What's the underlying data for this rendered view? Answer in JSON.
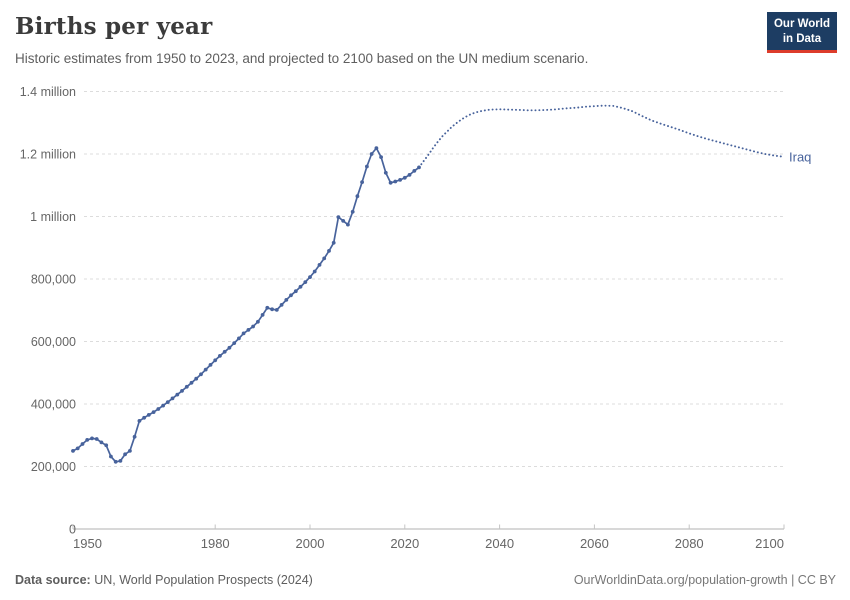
{
  "header": {
    "title": "Births per year",
    "subtitle": "Historic estimates from 1950 to 2023, and projected to 2100 based on the UN medium scenario."
  },
  "logo": {
    "line1": "Our World",
    "line2": "in Data"
  },
  "footer": {
    "source_label": "Data source:",
    "source_value": "UN, World Population Prospects (2024)",
    "attribution": "OurWorldinData.org/population-growth | CC BY"
  },
  "colors": {
    "line": "#48639c",
    "grid": "#dcdcdc",
    "axis": "#b0b0b0",
    "tick_mark": "#c4c4c4",
    "tick_label": "#666666",
    "title_text": "#3b3b3b",
    "subtitle_text": "#5f5f5f",
    "footer_text": "#5e5e5e",
    "attribution_text": "#777777",
    "logo_bg": "#1d3d63",
    "logo_accent": "#dd3c2b",
    "logo_text": "#ffffff"
  },
  "chart_data": {
    "type": "line",
    "title": "Births per year",
    "entity_label": "Iraq",
    "xlim": [
      1950,
      2100
    ],
    "ylim": [
      0,
      1400000
    ],
    "x_ticks": [
      1950,
      1980,
      2000,
      2020,
      2040,
      2060,
      2080,
      2100
    ],
    "y_ticks": [
      0,
      200000,
      400000,
      600000,
      800000,
      1000000,
      1200000,
      1400000
    ],
    "y_tick_labels": [
      "0",
      "200,000",
      "400,000",
      "600,000",
      "800,000",
      "1 million",
      "1.2 million",
      "1.4 million"
    ],
    "grid": true,
    "legend_position": "end-of-line",
    "series": [
      {
        "name": "historic (1950-2023)",
        "style": "solid-with-markers",
        "points": [
          [
            1950,
            250000
          ],
          [
            1951,
            258000
          ],
          [
            1952,
            272000
          ],
          [
            1953,
            285000
          ],
          [
            1954,
            290000
          ],
          [
            1955,
            288000
          ],
          [
            1956,
            277000
          ],
          [
            1957,
            268000
          ],
          [
            1958,
            232000
          ],
          [
            1959,
            215000
          ],
          [
            1960,
            218000
          ],
          [
            1961,
            239000
          ],
          [
            1962,
            250000
          ],
          [
            1963,
            295000
          ],
          [
            1964,
            346000
          ],
          [
            1965,
            356000
          ],
          [
            1966,
            365000
          ],
          [
            1967,
            374000
          ],
          [
            1968,
            384000
          ],
          [
            1969,
            395000
          ],
          [
            1970,
            406000
          ],
          [
            1971,
            418000
          ],
          [
            1972,
            430000
          ],
          [
            1973,
            442000
          ],
          [
            1974,
            455000
          ],
          [
            1975,
            468000
          ],
          [
            1976,
            481000
          ],
          [
            1977,
            495000
          ],
          [
            1978,
            510000
          ],
          [
            1979,
            525000
          ],
          [
            1980,
            540000
          ],
          [
            1981,
            554000
          ],
          [
            1982,
            567000
          ],
          [
            1983,
            580000
          ],
          [
            1984,
            595000
          ],
          [
            1985,
            610000
          ],
          [
            1986,
            626000
          ],
          [
            1987,
            637000
          ],
          [
            1988,
            648000
          ],
          [
            1989,
            663000
          ],
          [
            1990,
            685000
          ],
          [
            1991,
            708000
          ],
          [
            1992,
            703000
          ],
          [
            1993,
            701000
          ],
          [
            1994,
            717000
          ],
          [
            1995,
            733000
          ],
          [
            1996,
            748000
          ],
          [
            1997,
            761000
          ],
          [
            1998,
            775000
          ],
          [
            1999,
            790000
          ],
          [
            2000,
            806000
          ],
          [
            2001,
            824000
          ],
          [
            2002,
            845000
          ],
          [
            2003,
            866000
          ],
          [
            2004,
            890000
          ],
          [
            2005,
            916000
          ],
          [
            2006,
            998000
          ],
          [
            2007,
            986000
          ],
          [
            2008,
            974000
          ],
          [
            2009,
            1015000
          ],
          [
            2010,
            1065000
          ],
          [
            2011,
            1110000
          ],
          [
            2012,
            1160000
          ],
          [
            2013,
            1200000
          ],
          [
            2014,
            1219000
          ],
          [
            2015,
            1190000
          ],
          [
            2016,
            1140000
          ],
          [
            2017,
            1108000
          ],
          [
            2018,
            1112000
          ],
          [
            2019,
            1117000
          ],
          [
            2020,
            1124000
          ],
          [
            2021,
            1133000
          ],
          [
            2022,
            1146000
          ],
          [
            2023,
            1157000
          ]
        ]
      },
      {
        "name": "UN medium projection (2023-2100)",
        "style": "dotted",
        "points": [
          [
            2023,
            1157000
          ],
          [
            2024,
            1178000
          ],
          [
            2025,
            1198000
          ],
          [
            2026,
            1220000
          ],
          [
            2027,
            1240000
          ],
          [
            2028,
            1258000
          ],
          [
            2029,
            1273000
          ],
          [
            2030,
            1288000
          ],
          [
            2031,
            1300000
          ],
          [
            2032,
            1311000
          ],
          [
            2033,
            1320000
          ],
          [
            2034,
            1328000
          ],
          [
            2035,
            1333000
          ],
          [
            2036,
            1337000
          ],
          [
            2037,
            1340000
          ],
          [
            2038,
            1342000
          ],
          [
            2040,
            1343000
          ],
          [
            2042,
            1342000
          ],
          [
            2044,
            1341000
          ],
          [
            2046,
            1340000
          ],
          [
            2048,
            1340000
          ],
          [
            2050,
            1341000
          ],
          [
            2052,
            1343000
          ],
          [
            2054,
            1346000
          ],
          [
            2056,
            1348000
          ],
          [
            2058,
            1351000
          ],
          [
            2060,
            1353000
          ],
          [
            2062,
            1355000
          ],
          [
            2064,
            1354000
          ],
          [
            2066,
            1347000
          ],
          [
            2068,
            1337000
          ],
          [
            2070,
            1322000
          ],
          [
            2072,
            1308000
          ],
          [
            2074,
            1297000
          ],
          [
            2076,
            1287000
          ],
          [
            2078,
            1277000
          ],
          [
            2080,
            1266000
          ],
          [
            2082,
            1256000
          ],
          [
            2084,
            1247000
          ],
          [
            2086,
            1239000
          ],
          [
            2088,
            1231000
          ],
          [
            2090,
            1223000
          ],
          [
            2092,
            1215000
          ],
          [
            2094,
            1207000
          ],
          [
            2096,
            1200000
          ],
          [
            2098,
            1195000
          ],
          [
            2100,
            1191000
          ]
        ]
      }
    ]
  }
}
